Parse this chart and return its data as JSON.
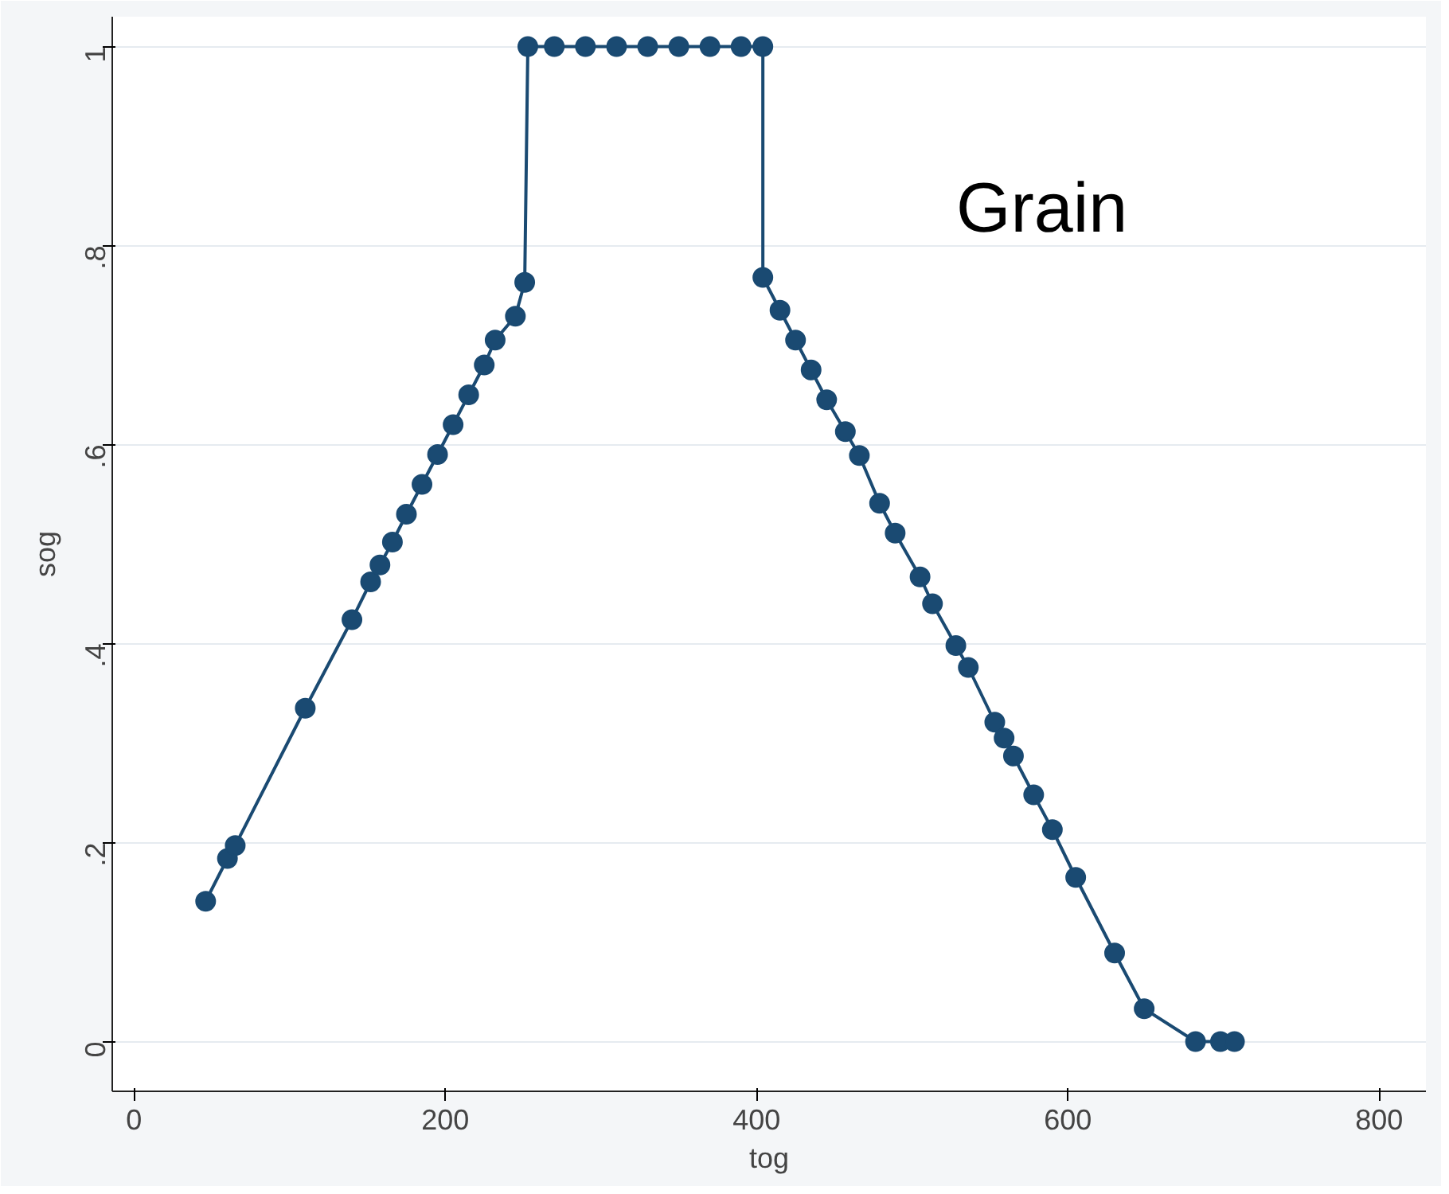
{
  "chart_data": {
    "type": "line",
    "xlabel": "tog",
    "ylabel": "sog",
    "annotations": [
      "Grain"
    ],
    "xlim": [
      -14,
      830
    ],
    "ylim": [
      -0.05,
      1.03
    ],
    "xticks": [
      0,
      200,
      400,
      600,
      800
    ],
    "yticks": [
      {
        "value": 0,
        "label": "0"
      },
      {
        "value": 0.2,
        "label": ".2"
      },
      {
        "value": 0.4,
        "label": ".4"
      },
      {
        "value": 0.6,
        "label": ".6"
      },
      {
        "value": 0.8,
        "label": ".8"
      },
      {
        "value": 1,
        "label": "1"
      }
    ],
    "grid": "y",
    "marker": "circle",
    "line_style": "solid",
    "series": [
      {
        "color": "#1a4a72",
        "x": [
          46,
          60,
          65,
          110,
          140,
          152,
          158,
          166,
          175,
          185,
          195,
          205,
          215,
          225,
          232,
          245,
          251,
          253,
          270,
          290,
          310,
          330,
          350,
          370,
          390,
          404,
          404,
          415,
          425,
          435,
          445,
          457,
          466,
          479,
          489,
          505,
          513,
          528,
          536,
          553,
          559,
          565,
          578,
          590,
          605,
          630,
          649,
          682,
          698,
          707
        ],
        "values": [
          0.141,
          0.184,
          0.197,
          0.335,
          0.424,
          0.462,
          0.479,
          0.502,
          0.53,
          0.56,
          0.59,
          0.62,
          0.65,
          0.68,
          0.705,
          0.729,
          0.763,
          1,
          1,
          1,
          1,
          1,
          1,
          1,
          1,
          1,
          0.768,
          0.735,
          0.705,
          0.675,
          0.645,
          0.613,
          0.589,
          0.541,
          0.511,
          0.467,
          0.44,
          0.398,
          0.376,
          0.321,
          0.305,
          0.287,
          0.248,
          0.213,
          0.165,
          0.089,
          0.033,
          0,
          0,
          0
        ]
      }
    ]
  }
}
